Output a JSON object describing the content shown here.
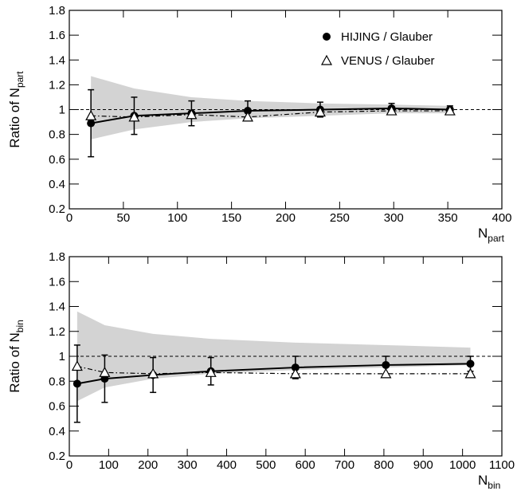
{
  "chart_data": [
    {
      "type": "scatter",
      "xlabel": "N",
      "xlabel_sub": "part",
      "ylabel": "Ratio of N",
      "ylabel_sub": "part",
      "x": [
        20,
        60,
        113,
        165,
        232,
        298,
        352
      ],
      "xlim": [
        0,
        400
      ],
      "xticks": [
        0,
        50,
        100,
        150,
        200,
        250,
        300,
        350,
        400
      ],
      "ylim": [
        0.2,
        1.8
      ],
      "yticks": [
        0.2,
        0.4,
        0.6,
        0.8,
        1,
        1.2,
        1.4,
        1.6,
        1.8
      ],
      "reference_line": 1,
      "band": {
        "color": "#d3d3d3",
        "upper": [
          1.27,
          1.17,
          1.1,
          1.07,
          1.05,
          1.04,
          1.03
        ],
        "lower": [
          0.76,
          0.84,
          0.9,
          0.93,
          0.95,
          0.97,
          0.97
        ]
      },
      "legend": "top-right",
      "series": [
        {
          "name": "HIJING / Glauber",
          "color": "#000000",
          "marker": "circle",
          "line_style": "solid",
          "values": [
            0.89,
            0.95,
            0.97,
            0.99,
            1.0,
            1.01,
            1.0
          ],
          "errors": [
            0.27,
            0.15,
            0.1,
            0.08,
            0.06,
            0.04,
            0.03
          ]
        },
        {
          "name": "VENUS / Glauber",
          "color": "#000000",
          "marker": "triangle",
          "line_style": "dashdot",
          "values": [
            0.95,
            0.94,
            0.96,
            0.94,
            0.98,
            0.99,
            0.99
          ]
        }
      ]
    },
    {
      "type": "scatter",
      "xlabel": "N",
      "xlabel_sub": "bin",
      "ylabel": "Ratio of N",
      "ylabel_sub": "bin",
      "x": [
        20,
        90,
        213,
        360,
        575,
        805,
        1020
      ],
      "xlim": [
        0,
        1100
      ],
      "xticks": [
        0,
        100,
        200,
        300,
        400,
        500,
        600,
        700,
        800,
        900,
        1000,
        1100
      ],
      "ylim": [
        0.2,
        1.8
      ],
      "yticks": [
        0.2,
        0.4,
        0.6,
        0.8,
        1,
        1.2,
        1.4,
        1.6,
        1.8
      ],
      "reference_line": 1,
      "band": {
        "color": "#d3d3d3",
        "upper": [
          1.36,
          1.25,
          1.18,
          1.14,
          1.11,
          1.09,
          1.07
        ],
        "lower": [
          0.64,
          0.75,
          0.82,
          0.86,
          0.89,
          0.91,
          0.93
        ]
      },
      "series": [
        {
          "color": "#000000",
          "marker": "circle",
          "line_style": "solid",
          "values": [
            0.78,
            0.82,
            0.85,
            0.88,
            0.91,
            0.93,
            0.94
          ],
          "errors": [
            0.31,
            0.19,
            0.14,
            0.11,
            0.09,
            0.07,
            0.06
          ]
        },
        {
          "color": "#000000",
          "marker": "triangle",
          "line_style": "dashdot",
          "values": [
            0.92,
            0.87,
            0.86,
            0.87,
            0.86,
            0.86,
            0.86
          ]
        }
      ]
    }
  ]
}
